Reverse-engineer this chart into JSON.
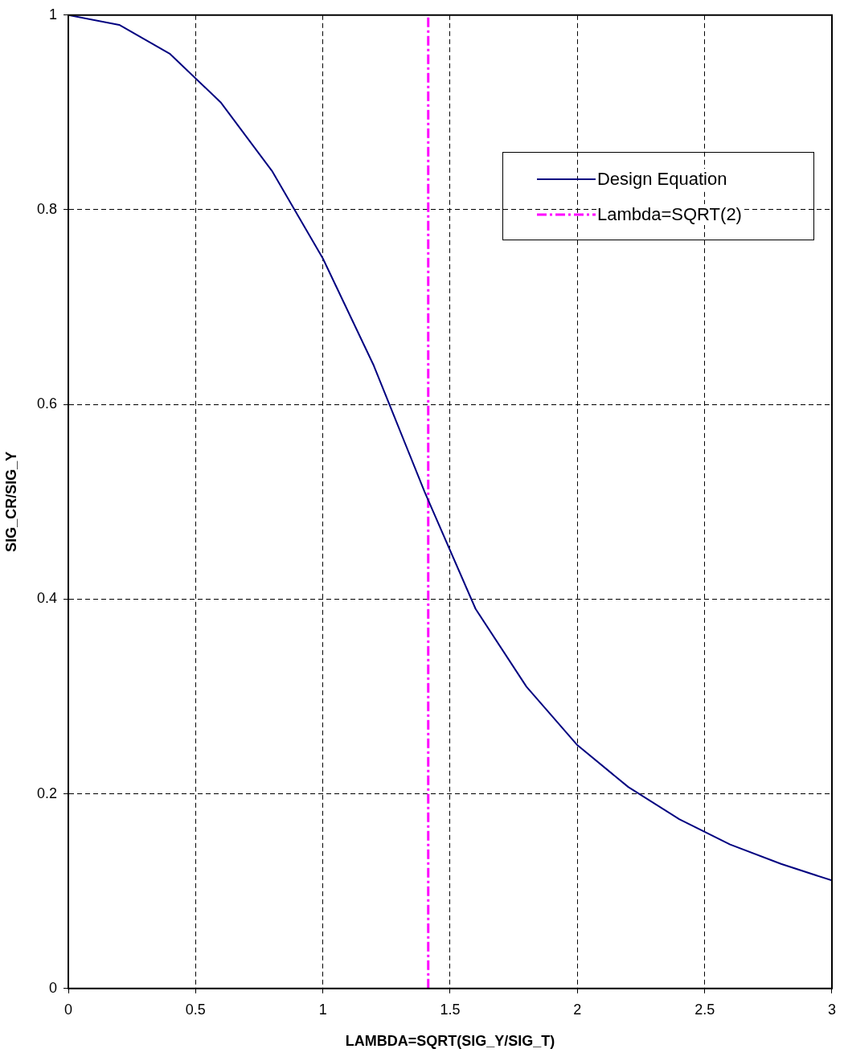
{
  "chart_data": {
    "type": "line",
    "xlabel": "LAMBDA=SQRT(SIG_Y/SIG_T)",
    "ylabel": "SIG_CR/SIG_Y",
    "x": [
      0,
      0.2,
      0.4,
      0.6,
      0.8,
      1.0,
      1.2,
      1.4,
      1.6,
      1.8,
      2.0,
      2.2,
      2.4,
      2.6,
      2.8,
      3.0
    ],
    "series": [
      {
        "name": "Design Equation",
        "color": "#000080",
        "values": [
          1.0,
          0.99,
          0.96,
          0.91,
          0.84,
          0.75,
          0.64,
          0.51,
          0.39,
          0.31,
          0.25,
          0.207,
          0.174,
          0.148,
          0.128,
          0.111
        ]
      },
      {
        "name": "Lambda=SQRT(2)",
        "type": "line",
        "color": "#ff00ff",
        "line_style": "dashdot",
        "x": [
          1.414,
          1.414
        ],
        "values": [
          0,
          1
        ]
      }
    ],
    "xlim": [
      0,
      3
    ],
    "xticks": [
      0,
      0.5,
      1,
      1.5,
      2,
      2.5,
      3
    ],
    "ylim": [
      0,
      1
    ],
    "yticks": [
      0,
      0.2,
      0.4,
      0.6,
      0.8,
      1
    ],
    "grid": true,
    "legend": "top right",
    "marker": "none",
    "line_style": "solid"
  }
}
